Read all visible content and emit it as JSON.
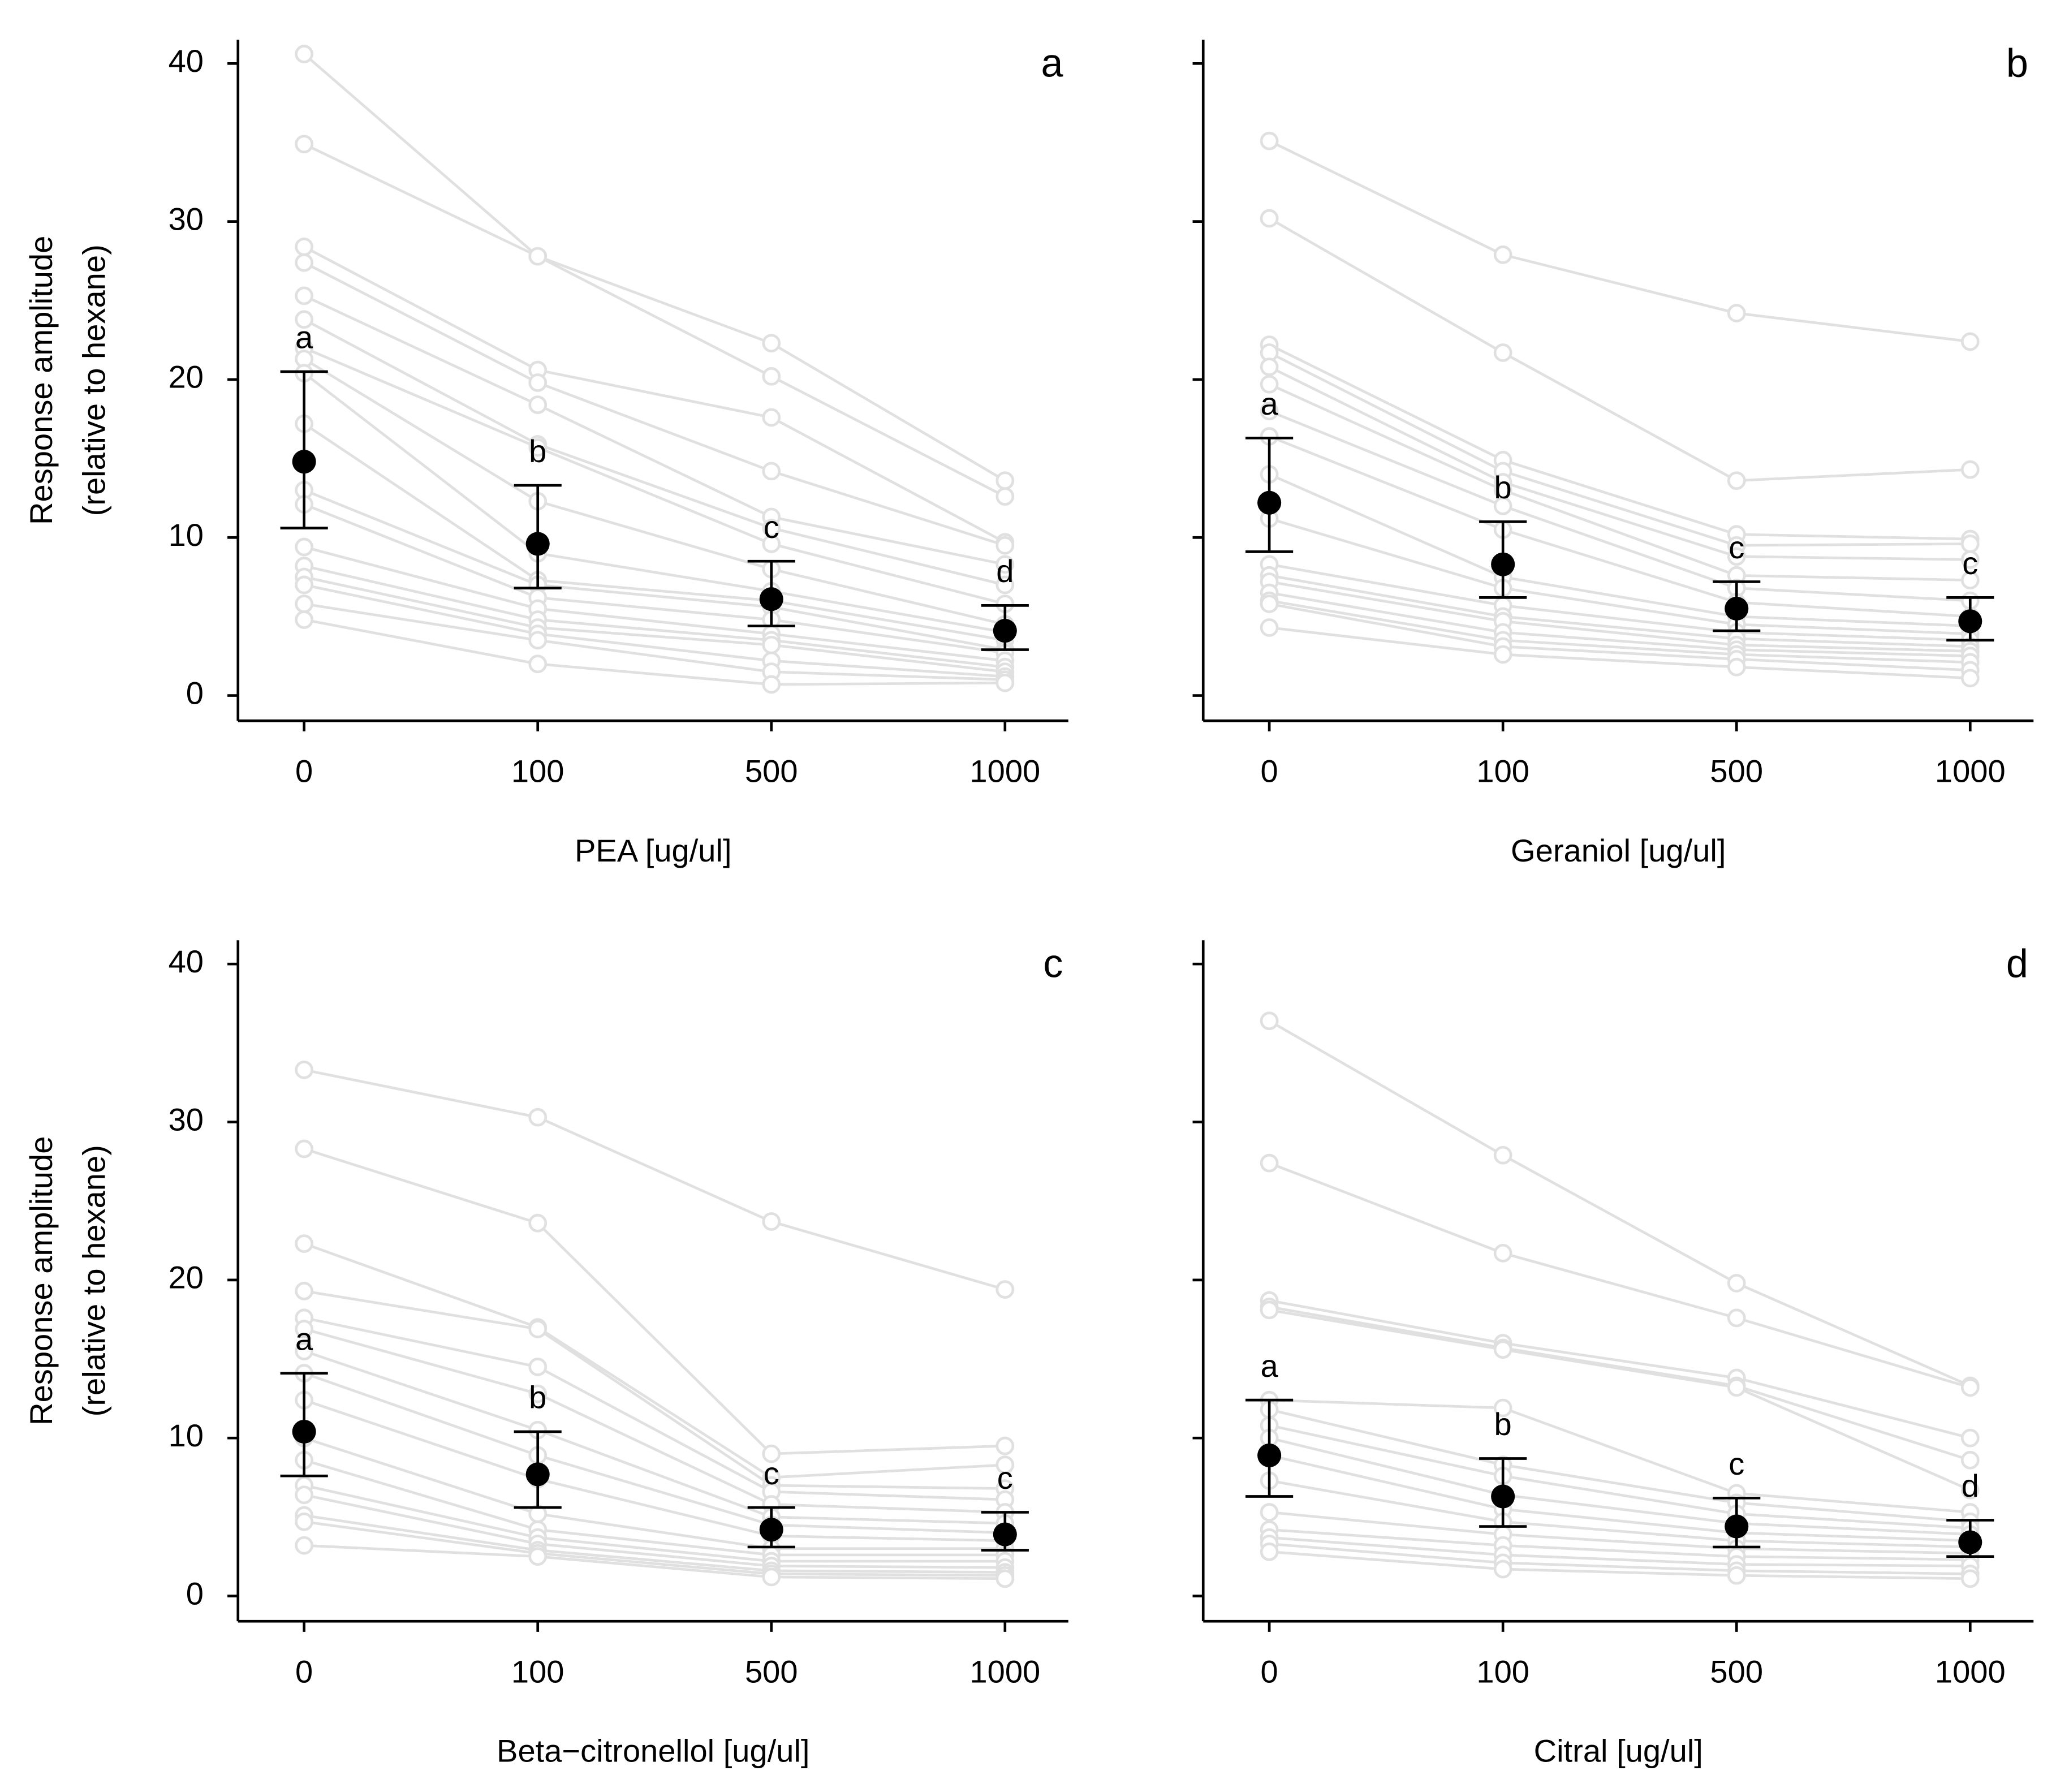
{
  "chart_data": [
    {
      "type": "line",
      "panel_label": "a",
      "xlabel": "PEA [ug/ul]",
      "ylabel": [
        "Response amplitude",
        "(relative to hexane)"
      ],
      "categories": [
        "0",
        "100",
        "500",
        "1000"
      ],
      "ylim": [
        -1.6,
        41.5
      ],
      "yticks": [
        0,
        10,
        20,
        30,
        40
      ],
      "subject_color": "#e0e0e0",
      "mean_color": "#000000",
      "subjects": [
        [
          40.6,
          27.8,
          22.3,
          13.6
        ],
        [
          34.9,
          27.8,
          20.2,
          12.6
        ],
        [
          28.4,
          20.6,
          17.6,
          9.7
        ],
        [
          27.4,
          19.8,
          14.2,
          9.5
        ],
        [
          25.3,
          18.4,
          11.3,
          8.3
        ],
        [
          23.8,
          15.9,
          10.6,
          7.0
        ],
        [
          22.0,
          15.7,
          9.6,
          5.8
        ],
        [
          21.3,
          12.3,
          8.0,
          4.5
        ],
        [
          20.4,
          9.0,
          6.6,
          4.0
        ],
        [
          17.2,
          7.3,
          6.0,
          3.5
        ],
        [
          13.0,
          7.0,
          5.6,
          2.9
        ],
        [
          12.1,
          6.2,
          4.8,
          2.7
        ],
        [
          9.4,
          5.5,
          3.9,
          2.2
        ],
        [
          8.2,
          4.8,
          3.5,
          1.8
        ],
        [
          7.5,
          4.3,
          3.2,
          1.5
        ],
        [
          7.0,
          3.9,
          2.2,
          1.2
        ],
        [
          5.8,
          3.5,
          1.5,
          1.0
        ],
        [
          4.8,
          2.0,
          0.7,
          0.8
        ]
      ],
      "mean": [
        14.8,
        9.6,
        6.1,
        4.1
      ],
      "lower": [
        10.6,
        6.8,
        4.4,
        2.9
      ],
      "upper": [
        20.5,
        13.3,
        8.5,
        5.7
      ],
      "letters": [
        "a",
        "b",
        "c",
        "d"
      ]
    },
    {
      "type": "line",
      "panel_label": "b",
      "xlabel": "Geraniol [ug/ul]",
      "categories": [
        "0",
        "100",
        "500",
        "1000"
      ],
      "ylim": [
        -1.6,
        41.5
      ],
      "subject_color": "#e0e0e0",
      "mean_color": "#000000",
      "subjects": [
        [
          35.1,
          27.9,
          24.2,
          22.4
        ],
        [
          30.2,
          21.7,
          13.6,
          14.3
        ],
        [
          22.2,
          14.9,
          10.2,
          9.9
        ],
        [
          21.7,
          14.2,
          9.5,
          9.6
        ],
        [
          20.8,
          13.5,
          8.8,
          8.6
        ],
        [
          19.7,
          13.0,
          7.6,
          7.3
        ],
        [
          18.0,
          12.0,
          6.8,
          6.0
        ],
        [
          16.4,
          10.5,
          5.9,
          5.0
        ],
        [
          14.0,
          7.5,
          5.0,
          4.4
        ],
        [
          11.2,
          6.8,
          4.5,
          3.9
        ],
        [
          8.3,
          5.7,
          4.0,
          3.5
        ],
        [
          7.6,
          5.0,
          3.6,
          3.1
        ],
        [
          7.2,
          4.7,
          3.2,
          2.8
        ],
        [
          6.5,
          4.0,
          2.9,
          2.5
        ],
        [
          6.0,
          3.5,
          2.6,
          2.1
        ],
        [
          5.8,
          3.1,
          2.3,
          1.6
        ],
        [
          4.3,
          2.6,
          1.8,
          1.1
        ]
      ],
      "mean": [
        12.2,
        8.3,
        5.5,
        4.7
      ],
      "lower": [
        9.1,
        6.2,
        4.1,
        3.5
      ],
      "upper": [
        16.3,
        11.0,
        7.2,
        6.2
      ],
      "letters": [
        "a",
        "b",
        "c",
        "c"
      ]
    },
    {
      "type": "line",
      "panel_label": "c",
      "xlabel": "Beta−citronellol [ug/ul]",
      "ylabel": [
        "Response amplitude",
        "(relative to hexane)"
      ],
      "categories": [
        "0",
        "100",
        "500",
        "1000"
      ],
      "ylim": [
        -1.6,
        41.5
      ],
      "yticks": [
        0,
        10,
        20,
        30,
        40
      ],
      "subject_color": "#e0e0e0",
      "mean_color": "#000000",
      "subjects": [
        [
          33.3,
          30.3,
          23.7,
          19.4
        ],
        [
          28.3,
          23.6,
          9.0,
          9.5
        ],
        [
          22.3,
          17.0,
          7.5,
          8.3
        ],
        [
          19.3,
          16.9,
          7.0,
          6.8
        ],
        [
          17.6,
          14.5,
          6.6,
          6.1
        ],
        [
          16.9,
          12.8,
          5.8,
          5.3
        ],
        [
          15.5,
          10.5,
          5.0,
          4.6
        ],
        [
          14.1,
          8.9,
          4.5,
          4.0
        ],
        [
          12.4,
          7.4,
          3.8,
          3.5
        ],
        [
          10.0,
          5.2,
          3.0,
          3.0
        ],
        [
          8.6,
          4.2,
          2.6,
          2.6
        ],
        [
          7.0,
          3.7,
          2.2,
          2.2
        ],
        [
          6.4,
          3.3,
          1.9,
          1.8
        ],
        [
          5.1,
          2.9,
          1.6,
          1.5
        ],
        [
          4.7,
          2.7,
          1.4,
          1.3
        ],
        [
          3.2,
          2.5,
          1.2,
          1.1
        ]
      ],
      "mean": [
        10.4,
        7.7,
        4.2,
        3.9
      ],
      "lower": [
        7.6,
        5.6,
        3.1,
        2.9
      ],
      "upper": [
        14.1,
        10.4,
        5.6,
        5.3
      ],
      "letters": [
        "a",
        "b",
        "c",
        "c"
      ]
    },
    {
      "type": "line",
      "panel_label": "d",
      "xlabel": "Citral [ug/ul]",
      "categories": [
        "0",
        "100",
        "500",
        "1000"
      ],
      "ylim": [
        -1.6,
        41.5
      ],
      "subject_color": "#e0e0e0",
      "mean_color": "#000000",
      "subjects": [
        [
          36.4,
          27.9,
          19.8,
          13.3
        ],
        [
          27.4,
          21.7,
          17.6,
          13.2
        ],
        [
          18.7,
          16.0,
          13.8,
          10.0
        ],
        [
          18.3,
          15.7,
          13.3,
          8.6
        ],
        [
          18.1,
          15.6,
          13.2,
          6.7
        ],
        [
          12.4,
          11.9,
          6.5,
          5.3
        ],
        [
          11.8,
          8.3,
          5.9,
          4.7
        ],
        [
          10.8,
          7.6,
          5.2,
          4.3
        ],
        [
          10.0,
          6.4,
          4.6,
          3.9
        ],
        [
          8.9,
          5.5,
          4.0,
          3.5
        ],
        [
          7.3,
          4.7,
          3.5,
          3.1
        ],
        [
          5.3,
          3.9,
          3.0,
          2.7
        ],
        [
          4.2,
          3.2,
          2.5,
          2.3
        ],
        [
          3.7,
          2.6,
          2.0,
          1.9
        ],
        [
          3.3,
          2.1,
          1.6,
          1.4
        ],
        [
          2.8,
          1.7,
          1.3,
          1.1
        ]
      ],
      "mean": [
        8.9,
        6.3,
        4.4,
        3.4
      ],
      "lower": [
        6.3,
        4.4,
        3.1,
        2.5
      ],
      "upper": [
        12.4,
        8.7,
        6.2,
        4.8
      ],
      "letters": [
        "a",
        "b",
        "c",
        "d"
      ]
    }
  ]
}
